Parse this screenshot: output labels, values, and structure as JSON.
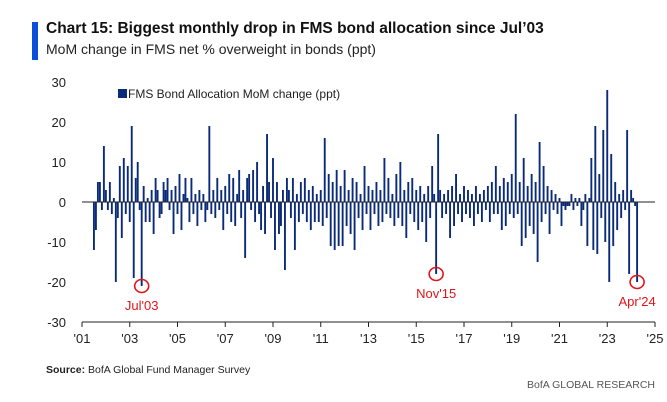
{
  "title": "Chart 15: Biggest monthly drop in FMS bond allocation since Jul’03",
  "subtitle": "MoM change in FMS net % overweight in bonds (ppt)",
  "source_label": "Source:",
  "source_text": "BofA Global Fund Manager Survey",
  "credit": "BofA GLOBAL RESEARCH",
  "colors": {
    "bar": "#0a2a7a",
    "accent": "#0b4fd6",
    "annotation": "#e0151b",
    "axis": "#222222"
  },
  "chart_data": {
    "type": "bar",
    "series": [
      {
        "name": "FMS Bond Allocation MoM change (ppt)"
      }
    ],
    "ylim": [
      -30,
      30
    ],
    "yticks": [
      30,
      20,
      10,
      0,
      -10,
      -20,
      -30
    ],
    "xticks": [
      "'01",
      "'03",
      "'05",
      "'07",
      "'09",
      "'11",
      "'13",
      "'15",
      "'17",
      "'19",
      "'21",
      "'23",
      "'25"
    ],
    "xlim": [
      "2001-01",
      "2025-01"
    ],
    "points": [
      {
        "x": "2001-07",
        "y": -12
      },
      {
        "x": "2001-08",
        "y": -7
      },
      {
        "x": "2001-09",
        "y": 5
      },
      {
        "x": "2001-10",
        "y": 5
      },
      {
        "x": "2001-11",
        "y": -2
      },
      {
        "x": "2001-12",
        "y": 14
      },
      {
        "x": "2002-01",
        "y": 3
      },
      {
        "x": "2002-02",
        "y": -2
      },
      {
        "x": "2002-03",
        "y": 5
      },
      {
        "x": "2002-04",
        "y": -3
      },
      {
        "x": "2002-05",
        "y": 1
      },
      {
        "x": "2002-06",
        "y": -20
      },
      {
        "x": "2002-07",
        "y": -4
      },
      {
        "x": "2002-08",
        "y": 9
      },
      {
        "x": "2002-09",
        "y": -9
      },
      {
        "x": "2002-10",
        "y": 11
      },
      {
        "x": "2002-11",
        "y": -3
      },
      {
        "x": "2002-12",
        "y": 9
      },
      {
        "x": "2003-01",
        "y": -5
      },
      {
        "x": "2003-02",
        "y": 19
      },
      {
        "x": "2003-03",
        "y": -19
      },
      {
        "x": "2003-04",
        "y": 6
      },
      {
        "x": "2003-05",
        "y": 10
      },
      {
        "x": "2003-06",
        "y": -2
      },
      {
        "x": "2003-07",
        "y": -21
      },
      {
        "x": "2003-08",
        "y": 4
      },
      {
        "x": "2003-09",
        "y": -5
      },
      {
        "x": "2003-10",
        "y": 1
      },
      {
        "x": "2003-11",
        "y": -5
      },
      {
        "x": "2003-12",
        "y": 3
      },
      {
        "x": "2004-01",
        "y": -8
      },
      {
        "x": "2004-02",
        "y": 6
      },
      {
        "x": "2004-03",
        "y": 3
      },
      {
        "x": "2004-04",
        "y": -4
      },
      {
        "x": "2004-05",
        "y": -3
      },
      {
        "x": "2004-06",
        "y": 5
      },
      {
        "x": "2004-07",
        "y": 3
      },
      {
        "x": "2004-08",
        "y": 6
      },
      {
        "x": "2004-09",
        "y": -2
      },
      {
        "x": "2004-10",
        "y": 3
      },
      {
        "x": "2004-11",
        "y": -8
      },
      {
        "x": "2004-12",
        "y": 4
      },
      {
        "x": "2005-01",
        "y": -3
      },
      {
        "x": "2005-02",
        "y": 7
      },
      {
        "x": "2005-03",
        "y": -7
      },
      {
        "x": "2005-04",
        "y": 2
      },
      {
        "x": "2005-05",
        "y": 6
      },
      {
        "x": "2005-06",
        "y": 1
      },
      {
        "x": "2005-07",
        "y": -5
      },
      {
        "x": "2005-08",
        "y": 6
      },
      {
        "x": "2005-09",
        "y": -3
      },
      {
        "x": "2005-10",
        "y": 2
      },
      {
        "x": "2005-11",
        "y": -6
      },
      {
        "x": "2005-12",
        "y": 3
      },
      {
        "x": "2006-01",
        "y": -2
      },
      {
        "x": "2006-02",
        "y": 2
      },
      {
        "x": "2006-03",
        "y": -5
      },
      {
        "x": "2006-04",
        "y": -2
      },
      {
        "x": "2006-05",
        "y": 19
      },
      {
        "x": "2006-06",
        "y": -3
      },
      {
        "x": "2006-07",
        "y": 3
      },
      {
        "x": "2006-08",
        "y": -4
      },
      {
        "x": "2006-09",
        "y": 6
      },
      {
        "x": "2006-10",
        "y": -2
      },
      {
        "x": "2006-11",
        "y": 3
      },
      {
        "x": "2006-12",
        "y": -7
      },
      {
        "x": "2007-01",
        "y": 4
      },
      {
        "x": "2007-02",
        "y": -3
      },
      {
        "x": "2007-03",
        "y": 7
      },
      {
        "x": "2007-04",
        "y": -5
      },
      {
        "x": "2007-05",
        "y": 6
      },
      {
        "x": "2007-06",
        "y": -6
      },
      {
        "x": "2007-07",
        "y": 2
      },
      {
        "x": "2007-08",
        "y": 8
      },
      {
        "x": "2007-09",
        "y": -4
      },
      {
        "x": "2007-10",
        "y": 3
      },
      {
        "x": "2007-11",
        "y": -14
      },
      {
        "x": "2007-12",
        "y": 6
      },
      {
        "x": "2008-01",
        "y": 7
      },
      {
        "x": "2008-02",
        "y": -2
      },
      {
        "x": "2008-03",
        "y": 8
      },
      {
        "x": "2008-04",
        "y": -5
      },
      {
        "x": "2008-05",
        "y": 10
      },
      {
        "x": "2008-06",
        "y": -3
      },
      {
        "x": "2008-07",
        "y": -7
      },
      {
        "x": "2008-08",
        "y": 4
      },
      {
        "x": "2008-09",
        "y": -8
      },
      {
        "x": "2008-10",
        "y": 17
      },
      {
        "x": "2008-11",
        "y": 5
      },
      {
        "x": "2008-12",
        "y": -4
      },
      {
        "x": "2009-01",
        "y": 11
      },
      {
        "x": "2009-02",
        "y": -12
      },
      {
        "x": "2009-03",
        "y": 5
      },
      {
        "x": "2009-04",
        "y": -8
      },
      {
        "x": "2009-05",
        "y": -6
      },
      {
        "x": "2009-06",
        "y": 3
      },
      {
        "x": "2009-07",
        "y": -17
      },
      {
        "x": "2009-08",
        "y": 6
      },
      {
        "x": "2009-09",
        "y": 3
      },
      {
        "x": "2009-10",
        "y": -4
      },
      {
        "x": "2009-11",
        "y": 6
      },
      {
        "x": "2009-12",
        "y": -12
      },
      {
        "x": "2010-01",
        "y": 2
      },
      {
        "x": "2010-02",
        "y": -5
      },
      {
        "x": "2010-03",
        "y": 5
      },
      {
        "x": "2010-04",
        "y": -3
      },
      {
        "x": "2010-05",
        "y": 6
      },
      {
        "x": "2010-06",
        "y": -5
      },
      {
        "x": "2010-07",
        "y": 3
      },
      {
        "x": "2010-08",
        "y": -7
      },
      {
        "x": "2010-09",
        "y": 4
      },
      {
        "x": "2010-10",
        "y": -5
      },
      {
        "x": "2010-11",
        "y": 2
      },
      {
        "x": "2010-12",
        "y": -5
      },
      {
        "x": "2011-01",
        "y": 3
      },
      {
        "x": "2011-02",
        "y": -6
      },
      {
        "x": "2011-03",
        "y": 16
      },
      {
        "x": "2011-04",
        "y": -4
      },
      {
        "x": "2011-05",
        "y": 7
      },
      {
        "x": "2011-06",
        "y": -11
      },
      {
        "x": "2011-07",
        "y": 5
      },
      {
        "x": "2011-08",
        "y": -12
      },
      {
        "x": "2011-09",
        "y": 8
      },
      {
        "x": "2011-10",
        "y": -11
      },
      {
        "x": "2011-11",
        "y": 4
      },
      {
        "x": "2011-12",
        "y": -11
      },
      {
        "x": "2012-01",
        "y": 8
      },
      {
        "x": "2012-02",
        "y": -6
      },
      {
        "x": "2012-03",
        "y": 3
      },
      {
        "x": "2012-04",
        "y": -8
      },
      {
        "x": "2012-05",
        "y": 6
      },
      {
        "x": "2012-06",
        "y": -12
      },
      {
        "x": "2012-07",
        "y": 5
      },
      {
        "x": "2012-08",
        "y": -4
      },
      {
        "x": "2012-09",
        "y": 2
      },
      {
        "x": "2012-10",
        "y": -7
      },
      {
        "x": "2012-11",
        "y": 9
      },
      {
        "x": "2012-12",
        "y": -3
      },
      {
        "x": "2013-01",
        "y": 4
      },
      {
        "x": "2013-02",
        "y": -7
      },
      {
        "x": "2013-03",
        "y": 3
      },
      {
        "x": "2013-04",
        "y": -3
      },
      {
        "x": "2013-05",
        "y": 5
      },
      {
        "x": "2013-06",
        "y": -6
      },
      {
        "x": "2013-07",
        "y": 3
      },
      {
        "x": "2013-08",
        "y": -5
      },
      {
        "x": "2013-09",
        "y": 11
      },
      {
        "x": "2013-10",
        "y": -3
      },
      {
        "x": "2013-11",
        "y": 6
      },
      {
        "x": "2013-12",
        "y": -4
      },
      {
        "x": "2014-01",
        "y": 2
      },
      {
        "x": "2014-02",
        "y": -6
      },
      {
        "x": "2014-03",
        "y": 7
      },
      {
        "x": "2014-04",
        "y": -4
      },
      {
        "x": "2014-05",
        "y": 10
      },
      {
        "x": "2014-06",
        "y": -6
      },
      {
        "x": "2014-07",
        "y": 3
      },
      {
        "x": "2014-08",
        "y": -9
      },
      {
        "x": "2014-09",
        "y": 5
      },
      {
        "x": "2014-10",
        "y": -3
      },
      {
        "x": "2014-11",
        "y": 6
      },
      {
        "x": "2014-12",
        "y": -5
      },
      {
        "x": "2015-01",
        "y": 3
      },
      {
        "x": "2015-02",
        "y": -7
      },
      {
        "x": "2015-03",
        "y": 4
      },
      {
        "x": "2015-04",
        "y": -5
      },
      {
        "x": "2015-05",
        "y": 2
      },
      {
        "x": "2015-06",
        "y": -10
      },
      {
        "x": "2015-07",
        "y": 4
      },
      {
        "x": "2015-08",
        "y": -4
      },
      {
        "x": "2015-09",
        "y": 9
      },
      {
        "x": "2015-10",
        "y": 2
      },
      {
        "x": "2015-11",
        "y": -18
      },
      {
        "x": "2015-12",
        "y": 17
      },
      {
        "x": "2016-01",
        "y": 3
      },
      {
        "x": "2016-02",
        "y": -4
      },
      {
        "x": "2016-03",
        "y": 2
      },
      {
        "x": "2016-04",
        "y": -3
      },
      {
        "x": "2016-05",
        "y": 3
      },
      {
        "x": "2016-06",
        "y": -9
      },
      {
        "x": "2016-07",
        "y": 4
      },
      {
        "x": "2016-08",
        "y": -6
      },
      {
        "x": "2016-09",
        "y": 7
      },
      {
        "x": "2016-10",
        "y": -3
      },
      {
        "x": "2016-11",
        "y": 2
      },
      {
        "x": "2016-12",
        "y": -5
      },
      {
        "x": "2017-01",
        "y": 4
      },
      {
        "x": "2017-02",
        "y": -3
      },
      {
        "x": "2017-03",
        "y": 3
      },
      {
        "x": "2017-04",
        "y": -4
      },
      {
        "x": "2017-05",
        "y": 2
      },
      {
        "x": "2017-06",
        "y": -6
      },
      {
        "x": "2017-07",
        "y": 4
      },
      {
        "x": "2017-08",
        "y": -3
      },
      {
        "x": "2017-09",
        "y": 2
      },
      {
        "x": "2017-10",
        "y": -5
      },
      {
        "x": "2017-11",
        "y": 3
      },
      {
        "x": "2017-12",
        "y": -2
      },
      {
        "x": "2018-01",
        "y": 4
      },
      {
        "x": "2018-02",
        "y": -5
      },
      {
        "x": "2018-03",
        "y": 5
      },
      {
        "x": "2018-04",
        "y": -3
      },
      {
        "x": "2018-05",
        "y": 9
      },
      {
        "x": "2018-06",
        "y": -3
      },
      {
        "x": "2018-07",
        "y": 4
      },
      {
        "x": "2018-08",
        "y": -7
      },
      {
        "x": "2018-09",
        "y": 6
      },
      {
        "x": "2018-10",
        "y": -6
      },
      {
        "x": "2018-11",
        "y": 5
      },
      {
        "x": "2018-12",
        "y": -3
      },
      {
        "x": "2019-01",
        "y": 7
      },
      {
        "x": "2019-02",
        "y": -4
      },
      {
        "x": "2019-03",
        "y": 22
      },
      {
        "x": "2019-04",
        "y": -3
      },
      {
        "x": "2019-05",
        "y": 5
      },
      {
        "x": "2019-06",
        "y": -11
      },
      {
        "x": "2019-07",
        "y": 11
      },
      {
        "x": "2019-08",
        "y": -9
      },
      {
        "x": "2019-09",
        "y": 4
      },
      {
        "x": "2019-10",
        "y": -6
      },
      {
        "x": "2019-11",
        "y": 7
      },
      {
        "x": "2019-12",
        "y": -8
      },
      {
        "x": "2020-01",
        "y": 5
      },
      {
        "x": "2020-02",
        "y": -15
      },
      {
        "x": "2020-03",
        "y": 15
      },
      {
        "x": "2020-04",
        "y": -5
      },
      {
        "x": "2020-05",
        "y": 9
      },
      {
        "x": "2020-06",
        "y": -3
      },
      {
        "x": "2020-07",
        "y": 4
      },
      {
        "x": "2020-08",
        "y": -8
      },
      {
        "x": "2020-09",
        "y": 3
      },
      {
        "x": "2020-10",
        "y": -2
      },
      {
        "x": "2020-11",
        "y": 2
      },
      {
        "x": "2020-12",
        "y": -3
      },
      {
        "x": "2021-01",
        "y": 1
      },
      {
        "x": "2021-02",
        "y": -6
      },
      {
        "x": "2021-03",
        "y": -1
      },
      {
        "x": "2021-04",
        "y": -2
      },
      {
        "x": "2021-05",
        "y": -1
      },
      {
        "x": "2021-06",
        "y": -1
      },
      {
        "x": "2021-07",
        "y": 2
      },
      {
        "x": "2021-08",
        "y": -2
      },
      {
        "x": "2021-09",
        "y": 1
      },
      {
        "x": "2021-10",
        "y": -1
      },
      {
        "x": "2021-11",
        "y": 1
      },
      {
        "x": "2021-12",
        "y": -6
      },
      {
        "x": "2022-01",
        "y": -2
      },
      {
        "x": "2022-02",
        "y": 2
      },
      {
        "x": "2022-03",
        "y": -11
      },
      {
        "x": "2022-04",
        "y": 1
      },
      {
        "x": "2022-05",
        "y": 11
      },
      {
        "x": "2022-06",
        "y": -12
      },
      {
        "x": "2022-07",
        "y": 19
      },
      {
        "x": "2022-08",
        "y": -13
      },
      {
        "x": "2022-09",
        "y": 7
      },
      {
        "x": "2022-10",
        "y": -4
      },
      {
        "x": "2022-11",
        "y": 18
      },
      {
        "x": "2022-12",
        "y": -10
      },
      {
        "x": "2023-01",
        "y": 28
      },
      {
        "x": "2023-02",
        "y": -20
      },
      {
        "x": "2023-03",
        "y": 12
      },
      {
        "x": "2023-04",
        "y": -11
      },
      {
        "x": "2023-05",
        "y": 5
      },
      {
        "x": "2023-06",
        "y": -7
      },
      {
        "x": "2023-07",
        "y": 2
      },
      {
        "x": "2023-08",
        "y": -4
      },
      {
        "x": "2023-09",
        "y": 3
      },
      {
        "x": "2023-10",
        "y": -2
      },
      {
        "x": "2023-11",
        "y": 18
      },
      {
        "x": "2023-12",
        "y": -18
      },
      {
        "x": "2024-01",
        "y": 3
      },
      {
        "x": "2024-02",
        "y": 1
      },
      {
        "x": "2024-03",
        "y": -1
      },
      {
        "x": "2024-04",
        "y": -20
      }
    ],
    "annotations": [
      {
        "label": "Jul'03",
        "x": "2003-07",
        "y": -21
      },
      {
        "label": "Nov'15",
        "x": "2015-11",
        "y": -18
      },
      {
        "label": "Apr'24",
        "x": "2024-04",
        "y": -20
      }
    ]
  }
}
